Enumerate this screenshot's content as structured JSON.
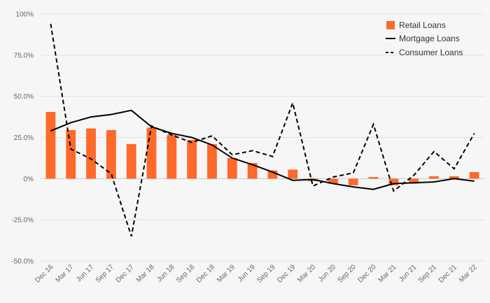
{
  "chart_data": {
    "type": "bar+line",
    "categories": [
      "Dec 16",
      "Mar 17",
      "Jun 17",
      "Sep 17",
      "Dec 17",
      "Mar 18",
      "Jun 18",
      "Sep 18",
      "Dec 18",
      "Mar 19",
      "Jun 19",
      "Sep 19",
      "Dec 19",
      "Mar 20",
      "Jun 20",
      "Sep 20",
      "Dec 20",
      "Mar 21",
      "Jun 21",
      "Sep 21",
      "Dec 21",
      "Mar 22"
    ],
    "y_ticks": [
      "100%",
      "75.0%",
      "50.0%",
      "25.0%",
      "0%",
      "-25.0%",
      "-50.0%"
    ],
    "ylim": [
      -50,
      100
    ],
    "grid": "horizontal",
    "legend_position": "top-right",
    "series": [
      {
        "name": "Retail Loans",
        "type": "bar",
        "color": "#ff6a2b",
        "values": [
          40.5,
          29.5,
          30.5,
          29.5,
          21,
          31,
          26.5,
          23.5,
          21,
          12.5,
          9.5,
          5,
          5.5,
          -1.5,
          -3,
          -4,
          1,
          -4,
          -3,
          1.5,
          1.5,
          4
        ]
      },
      {
        "name": "Mortgage Loans",
        "type": "line",
        "style": "solid",
        "color": "#000000",
        "values": [
          29,
          34,
          37.5,
          39,
          41.5,
          31.5,
          27.5,
          25,
          20.5,
          12.5,
          8.5,
          4,
          -1,
          -0.5,
          -3,
          -5,
          -6.5,
          -3,
          -2.5,
          -2,
          0,
          -1.5
        ]
      },
      {
        "name": "Consumer Loans",
        "type": "line",
        "style": "dashed",
        "color": "#000000",
        "values": [
          94,
          18,
          12,
          3,
          -35,
          32,
          26.5,
          22,
          26,
          14.5,
          17,
          13.5,
          46,
          -4.5,
          1,
          3.5,
          33,
          -7.5,
          2,
          16.5,
          6,
          27.5
        ]
      }
    ]
  }
}
